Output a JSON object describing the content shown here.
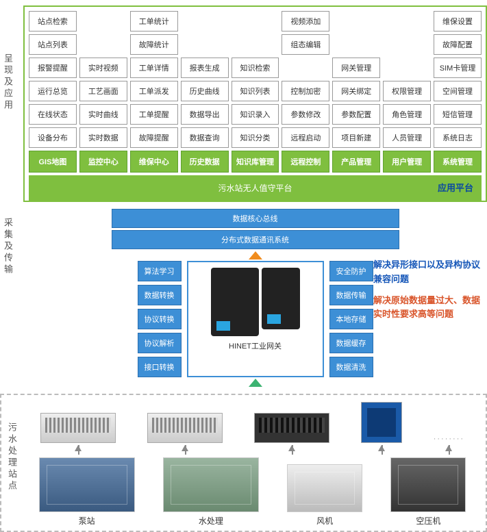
{
  "sections": {
    "present": "呈现及应用",
    "collect": "采集及传输",
    "station": "污水处理站点"
  },
  "grid": {
    "rows": [
      [
        "站点检索",
        "",
        "工单统计",
        "",
        "",
        "视频添加",
        "",
        "",
        "维保设置"
      ],
      [
        "站点列表",
        "",
        "故障统计",
        "",
        "",
        "组态编辑",
        "",
        "",
        "故障配置"
      ],
      [
        "报警提醒",
        "实时视频",
        "工单详情",
        "报表生成",
        "知识检索",
        "",
        "网关管理",
        "",
        "SIM卡管理"
      ],
      [
        "运行总览",
        "工艺画面",
        "工单派发",
        "历史曲线",
        "知识列表",
        "控制加密",
        "网关绑定",
        "权限管理",
        "空间管理"
      ],
      [
        "在线状态",
        "实时曲线",
        "工单提醒",
        "数据导出",
        "知识录入",
        "参数修改",
        "参数配置",
        "角色管理",
        "短信管理"
      ],
      [
        "设备分布",
        "实时数据",
        "故障提醒",
        "数据查询",
        "知识分类",
        "远程启动",
        "项目新建",
        "人员管理",
        "系统日志"
      ]
    ],
    "headers": [
      "GIS地图",
      "监控中心",
      "维保中心",
      "历史数据",
      "知识库管理",
      "远程控制",
      "产品管理",
      "用户管理",
      "系统管理"
    ]
  },
  "platform_bar": {
    "center": "污水站无人值守平台",
    "right": "应用平台"
  },
  "blue_bars": [
    "数据核心总线",
    "分布式数据通讯系统"
  ],
  "left_tags": [
    "算法学习",
    "数据转换",
    "协议转换",
    "协议解析",
    "接口转换"
  ],
  "right_tags": [
    "安全防护",
    "数据传输",
    "本地存储",
    "数据缓存",
    "数据清洗"
  ],
  "gateway_label": "HINET工业网关",
  "side_text": {
    "t1": "解决异形接口以及异构协议兼容问题",
    "t2": "解决原始数据量过大、数据实时性要求高等问题"
  },
  "equipment": [
    "泵站",
    "水处理",
    "风机",
    "空压机"
  ],
  "placeholder": "········",
  "colors": {
    "green": "#7fbf3f",
    "blue": "#3d8fd6",
    "text_blue": "#1556b8",
    "text_orange": "#d9552b"
  }
}
